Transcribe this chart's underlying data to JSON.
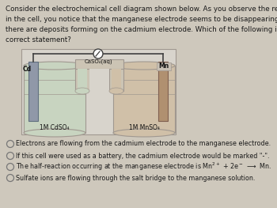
{
  "title_text": "Consider the electrochemical cell diagram shown below. As you observe the reaction\nin the cell, you notice that the manganese electrode seems to be disappearing while\nthere are deposits forming on the cadmium electrode. Which of the following is a\ncorrect statement?",
  "options": [
    "Electrons are flowing from the cadmium electrode to the manganese electrode.",
    "If this cell were used as a battery, the cadmium electrode would be marked \"-\".",
    "The half-reaction occurring at the manganese electrode is Mn²⁺ + 2e⁻ —→ Mn.",
    "Sulfate ions are flowing through the salt bridge to the manganese solution."
  ],
  "bg_color": "#cec8bc",
  "box_color": "#d8d4cc",
  "box_edge": "#a09890",
  "beaker_left_fill": "#c8d4c0",
  "beaker_right_fill": "#d0c0a8",
  "salt_fill": "#ccc4b4",
  "electrode_cd": "#9098a8",
  "electrode_mn": "#b09070",
  "wire_color": "#404040",
  "text_color": "#1a1a1a",
  "label_cd": "Cd",
  "label_mn": "Mn",
  "label_salt": "CaSO₄(aq)",
  "label_left_sol": "1M CdSO₄",
  "label_right_sol": "1M MnSO₄"
}
